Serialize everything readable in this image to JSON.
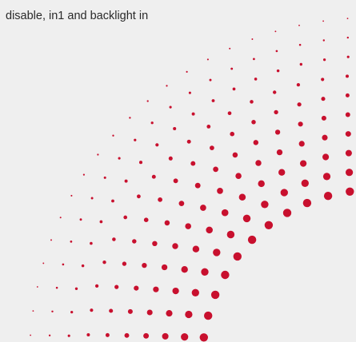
{
  "caption": {
    "text": "disable, in1 and backlight in"
  },
  "decoration": {
    "pattern": "halftone-dot-arcs",
    "dot_color": "#c8102e",
    "background_color": "#efefef"
  }
}
